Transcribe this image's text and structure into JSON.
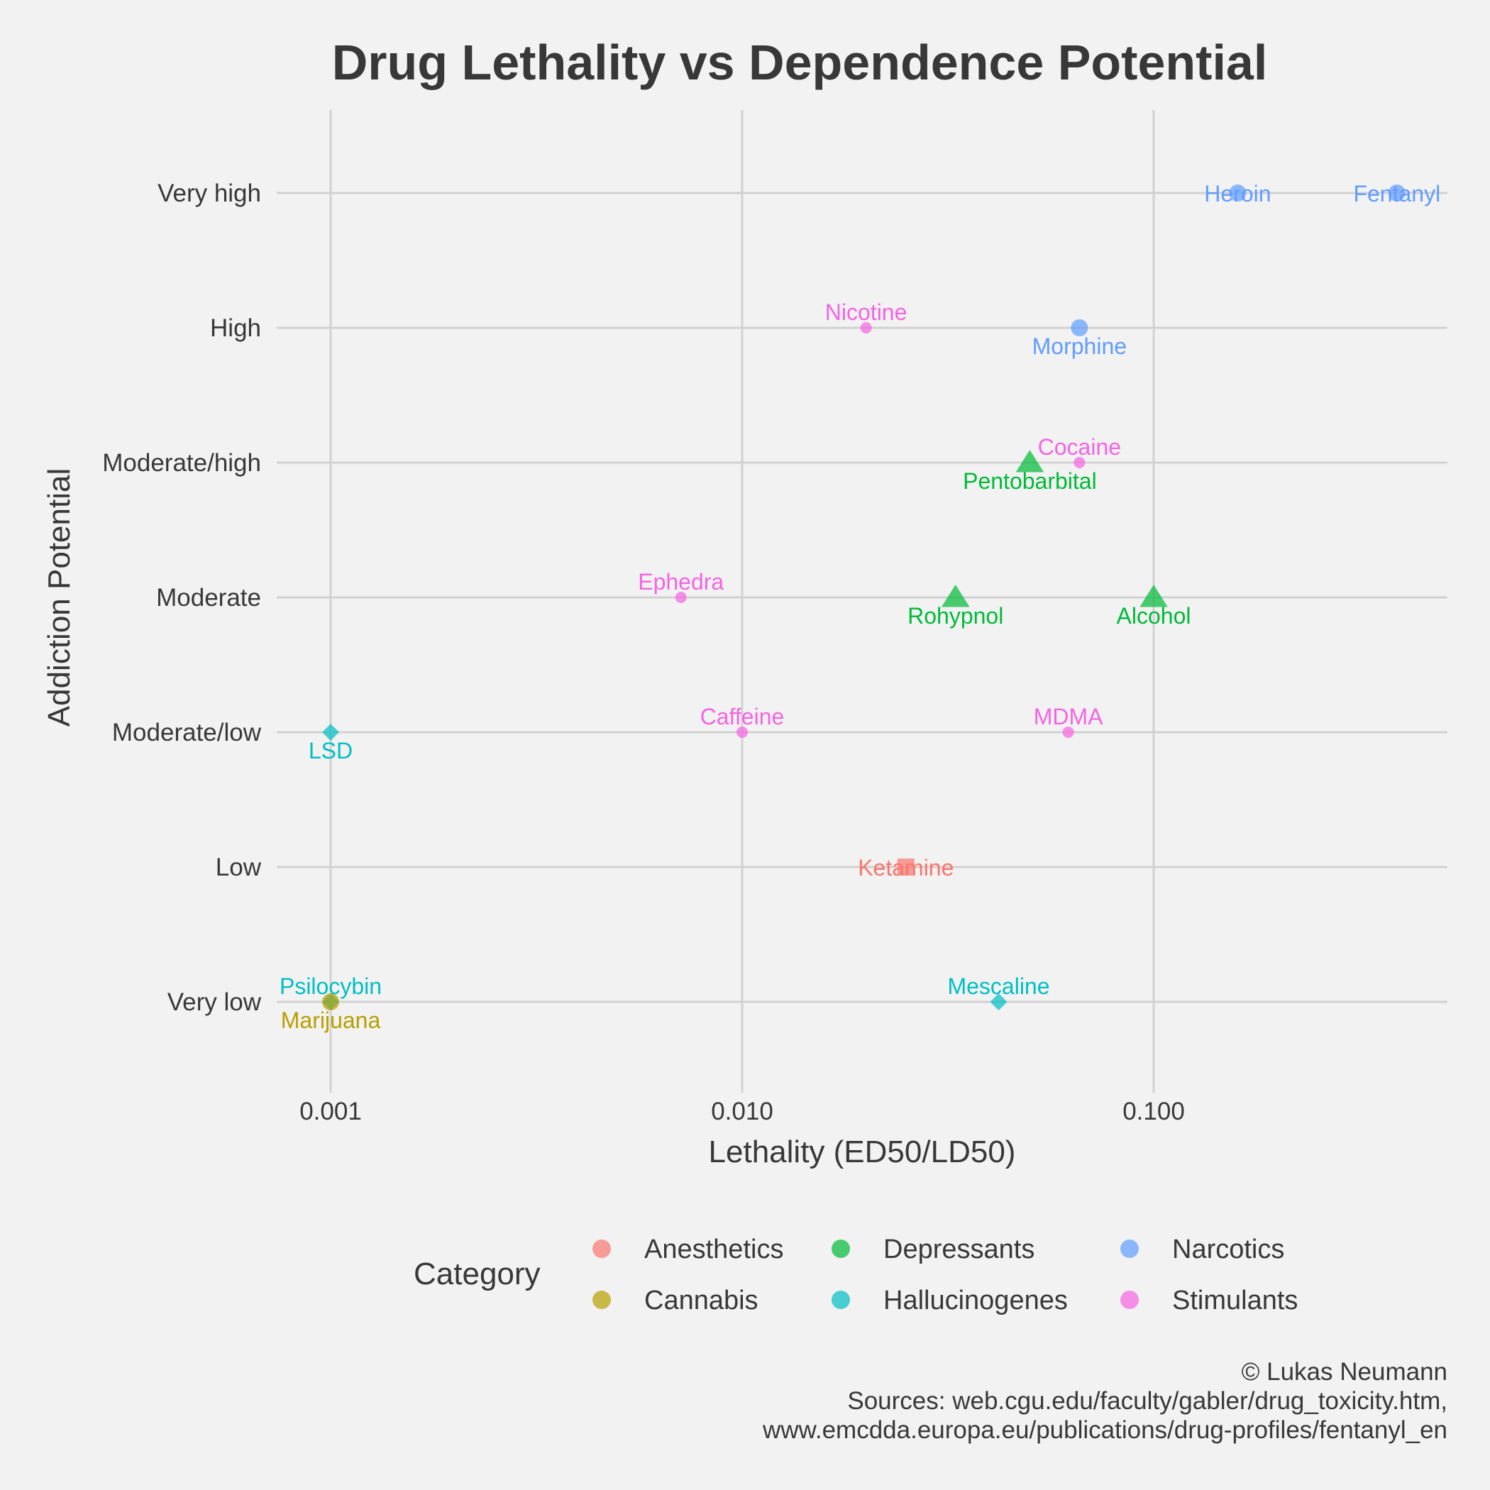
{
  "chart_data": {
    "type": "scatter",
    "title": "Drug Lethality vs Dependence Potential",
    "xlabel": "Lethality (ED50/LD50)",
    "ylabel": "Addiction Potential",
    "x_scale": "log10",
    "x_ticks": [
      "0.001",
      "0.010",
      "0.100"
    ],
    "x_tick_values": [
      0.001,
      0.01,
      0.1
    ],
    "y_categories": [
      "Very low",
      "Low",
      "Moderate/low",
      "Moderate",
      "Moderate/high",
      "High",
      "Very high"
    ],
    "grid": true,
    "legend": {
      "title": "Category",
      "position": "bottom",
      "entries": [
        "Anesthetics",
        "Cannabis",
        "Depressants",
        "Hallucinogenes",
        "Narcotics",
        "Stimulants"
      ]
    },
    "colors": {
      "Anesthetics": "#F8766D",
      "Cannabis": "#B79F00",
      "Depressants": "#00BA38",
      "Hallucinogenes": "#00BFC4",
      "Narcotics": "#619CFF",
      "Stimulants": "#F564E3"
    },
    "points": [
      {
        "name": "Heroin",
        "x": 0.16,
        "y": "Very high",
        "category": "Narcotics",
        "label_pos": "center"
      },
      {
        "name": "Fentanyl",
        "x": 0.39,
        "y": "Very high",
        "category": "Narcotics",
        "label_pos": "center"
      },
      {
        "name": "Nicotine",
        "x": 0.02,
        "y": "High",
        "category": "Stimulants",
        "label_pos": "above"
      },
      {
        "name": "Morphine",
        "x": 0.066,
        "y": "High",
        "category": "Narcotics",
        "label_pos": "below"
      },
      {
        "name": "Cocaine",
        "x": 0.066,
        "y": "Moderate/high",
        "category": "Stimulants",
        "label_pos": "above"
      },
      {
        "name": "Pentobarbital",
        "x": 0.05,
        "y": "Moderate/high",
        "category": "Depressants",
        "label_pos": "below"
      },
      {
        "name": "Ephedra",
        "x": 0.0071,
        "y": "Moderate",
        "category": "Stimulants",
        "label_pos": "above"
      },
      {
        "name": "Rohypnol",
        "x": 0.033,
        "y": "Moderate",
        "category": "Depressants",
        "label_pos": "below"
      },
      {
        "name": "Alcohol",
        "x": 0.1,
        "y": "Moderate",
        "category": "Depressants",
        "label_pos": "below"
      },
      {
        "name": "LSD",
        "x": 0.001,
        "y": "Moderate/low",
        "category": "Hallucinogenes",
        "label_pos": "below"
      },
      {
        "name": "Caffeine",
        "x": 0.01,
        "y": "Moderate/low",
        "category": "Stimulants",
        "label_pos": "above"
      },
      {
        "name": "MDMA",
        "x": 0.062,
        "y": "Moderate/low",
        "category": "Stimulants",
        "label_pos": "above"
      },
      {
        "name": "Ketamine",
        "x": 0.025,
        "y": "Low",
        "category": "Anesthetics",
        "label_pos": "center"
      },
      {
        "name": "Psilocybin",
        "x": 0.001,
        "y": "Very low",
        "category": "Hallucinogenes",
        "label_pos": "above"
      },
      {
        "name": "Marijuana",
        "x": 0.001,
        "y": "Very low",
        "category": "Cannabis",
        "label_pos": "below"
      },
      {
        "name": "Mescaline",
        "x": 0.042,
        "y": "Very low",
        "category": "Hallucinogenes",
        "label_pos": "above"
      }
    ],
    "caption": [
      "© Lukas Neumann",
      "Sources: web.cgu.edu/faculty/gabler/drug_toxicity.htm,",
      "www.emcdda.europa.eu/publications/drug-profiles/fentanyl_en"
    ]
  }
}
